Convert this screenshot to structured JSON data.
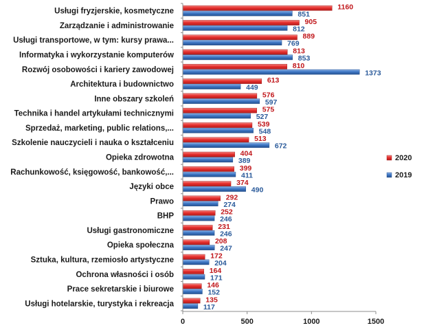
{
  "chart_data": {
    "type": "bar",
    "orientation": "horizontal",
    "categories": [
      "Usługi fryzjerskie, kosmetyczne",
      "Zarządzanie i administrowanie",
      "Usługi transportowe, w tym: kursy prawa...",
      "Informatyka i wykorzystanie komputerów",
      "Rozwój osobowości i kariery zawodowej",
      "Architektura i budownictwo",
      "Inne obszary szkoleń",
      "Technika i handel artykułami technicznymi",
      "Sprzedaż, marketing, public relations,...",
      "Szkolenie nauczycieli i nauka o kształceniu",
      "Opieka zdrowotna",
      "Rachunkowość, księgowość, bankowość,...",
      "Języki obce",
      "Prawo",
      "BHP",
      "Usługi gastronomiczne",
      "Opieka społeczna",
      "Sztuka, kultura, rzemiosło artystyczne",
      "Ochrona własności i osób",
      "Prace sekretarskie i biurowe",
      "Usługi hotelarskie, turystyka i rekreacja"
    ],
    "series": [
      {
        "name": "2020",
        "color": "#e8312f",
        "label_color": "#c0161a",
        "values": [
          1160,
          905,
          889,
          813,
          810,
          613,
          576,
          575,
          539,
          513,
          404,
          399,
          374,
          292,
          252,
          231,
          208,
          172,
          164,
          146,
          135
        ]
      },
      {
        "name": "2019",
        "color": "#3f78c6",
        "label_color": "#2a5a9a",
        "values": [
          851,
          812,
          769,
          853,
          1373,
          449,
          597,
          527,
          548,
          672,
          389,
          411,
          490,
          274,
          246,
          246,
          247,
          204,
          171,
          152,
          117
        ]
      }
    ],
    "xlim": [
      0,
      1500
    ],
    "x_ticks": [
      "0",
      "500",
      "1000",
      "1500"
    ],
    "grid": false,
    "legend_position": "right",
    "title": "",
    "xlabel": "",
    "ylabel": ""
  }
}
